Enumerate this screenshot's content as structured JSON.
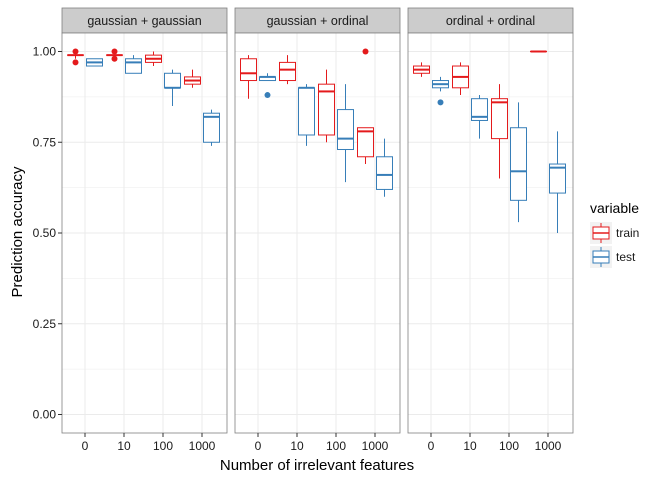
{
  "chart_data": {
    "type": "boxplot",
    "xlabel": "Number of irrelevant features",
    "ylabel": "Prediction accuracy",
    "x_categories": [
      "0",
      "10",
      "100",
      "1000"
    ],
    "ylim": [
      -0.03,
      1.05
    ],
    "y_ticks": [
      "0.00",
      "0.25",
      "0.50",
      "0.75",
      "1.00"
    ],
    "y_tick_values": [
      0,
      0.25,
      0.5,
      0.75,
      1.0
    ],
    "legend": {
      "title": "variable",
      "position": "right",
      "entries": [
        {
          "name": "train",
          "color": "#e41a1c"
        },
        {
          "name": "test",
          "color": "#377eb8"
        }
      ]
    },
    "background": {
      "strip": "#cccccc",
      "panel": "#ffffff",
      "grid": "#ebebeb"
    },
    "panels": [
      {
        "label": "gaussian + gaussian",
        "boxes": [
          {
            "x": "0",
            "series": "train",
            "lw": 0.98,
            "q1": 0.99,
            "med": 0.99,
            "q3": 0.99,
            "uw": 0.99,
            "outliers": [
              1.0,
              0.97
            ]
          },
          {
            "x": "0",
            "series": "test",
            "lw": 0.96,
            "q1": 0.96,
            "med": 0.97,
            "q3": 0.98,
            "uw": 0.98,
            "outliers": []
          },
          {
            "x": "10",
            "series": "train",
            "lw": 0.99,
            "q1": 0.99,
            "med": 0.99,
            "q3": 0.99,
            "uw": 0.99,
            "outliers": [
              1.0,
              0.98
            ]
          },
          {
            "x": "10",
            "series": "test",
            "lw": 0.94,
            "q1": 0.94,
            "med": 0.97,
            "q3": 0.98,
            "uw": 0.99,
            "outliers": []
          },
          {
            "x": "100",
            "series": "train",
            "lw": 0.96,
            "q1": 0.97,
            "med": 0.98,
            "q3": 0.99,
            "uw": 1.0,
            "outliers": []
          },
          {
            "x": "100",
            "series": "test",
            "lw": 0.85,
            "q1": 0.9,
            "med": 0.9,
            "q3": 0.94,
            "uw": 0.95,
            "outliers": []
          },
          {
            "x": "1000",
            "series": "train",
            "lw": 0.9,
            "q1": 0.91,
            "med": 0.92,
            "q3": 0.93,
            "uw": 0.95,
            "outliers": []
          },
          {
            "x": "1000",
            "series": "test",
            "lw": 0.74,
            "q1": 0.75,
            "med": 0.82,
            "q3": 0.83,
            "uw": 0.84,
            "outliers": []
          }
        ]
      },
      {
        "label": "gaussian + ordinal",
        "boxes": [
          {
            "x": "0",
            "series": "train",
            "lw": 0.87,
            "q1": 0.92,
            "med": 0.94,
            "q3": 0.98,
            "uw": 0.99,
            "outliers": []
          },
          {
            "x": "0",
            "series": "test",
            "lw": 0.92,
            "q1": 0.92,
            "med": 0.93,
            "q3": 0.93,
            "uw": 0.94,
            "outliers": [
              0.88
            ]
          },
          {
            "x": "10",
            "series": "train",
            "lw": 0.91,
            "q1": 0.92,
            "med": 0.95,
            "q3": 0.97,
            "uw": 0.99,
            "outliers": []
          },
          {
            "x": "10",
            "series": "test",
            "lw": 0.74,
            "q1": 0.77,
            "med": 0.9,
            "q3": 0.9,
            "uw": 0.91,
            "outliers": []
          },
          {
            "x": "100",
            "series": "train",
            "lw": 0.75,
            "q1": 0.77,
            "med": 0.89,
            "q3": 0.91,
            "uw": 0.95,
            "outliers": []
          },
          {
            "x": "100",
            "series": "test",
            "lw": 0.64,
            "q1": 0.73,
            "med": 0.76,
            "q3": 0.84,
            "uw": 0.91,
            "outliers": []
          },
          {
            "x": "1000",
            "series": "train",
            "lw": 0.69,
            "q1": 0.71,
            "med": 0.78,
            "q3": 0.79,
            "uw": 0.79,
            "outliers": [
              1.0
            ]
          },
          {
            "x": "1000",
            "series": "test",
            "lw": 0.6,
            "q1": 0.62,
            "med": 0.66,
            "q3": 0.71,
            "uw": 0.76,
            "outliers": []
          }
        ]
      },
      {
        "label": "ordinal + ordinal",
        "boxes": [
          {
            "x": "0",
            "series": "train",
            "lw": 0.93,
            "q1": 0.94,
            "med": 0.95,
            "q3": 0.96,
            "uw": 0.97,
            "outliers": []
          },
          {
            "x": "0",
            "series": "test",
            "lw": 0.89,
            "q1": 0.9,
            "med": 0.91,
            "q3": 0.92,
            "uw": 0.93,
            "outliers": [
              0.86
            ]
          },
          {
            "x": "10",
            "series": "train",
            "lw": 0.88,
            "q1": 0.9,
            "med": 0.93,
            "q3": 0.96,
            "uw": 0.97,
            "outliers": []
          },
          {
            "x": "10",
            "series": "test",
            "lw": 0.76,
            "q1": 0.81,
            "med": 0.82,
            "q3": 0.87,
            "uw": 0.88,
            "outliers": []
          },
          {
            "x": "100",
            "series": "train",
            "lw": 0.65,
            "q1": 0.76,
            "med": 0.86,
            "q3": 0.87,
            "uw": 0.91,
            "outliers": []
          },
          {
            "x": "100",
            "series": "test",
            "lw": 0.53,
            "q1": 0.59,
            "med": 0.67,
            "q3": 0.79,
            "uw": 0.86,
            "outliers": []
          },
          {
            "x": "1000",
            "series": "train",
            "lw": 1.0,
            "q1": 1.0,
            "med": 1.0,
            "q3": 1.0,
            "uw": 1.0,
            "outliers": []
          },
          {
            "x": "1000",
            "series": "test",
            "lw": 0.5,
            "q1": 0.61,
            "med": 0.68,
            "q3": 0.69,
            "uw": 0.78,
            "outliers": []
          }
        ]
      }
    ]
  }
}
